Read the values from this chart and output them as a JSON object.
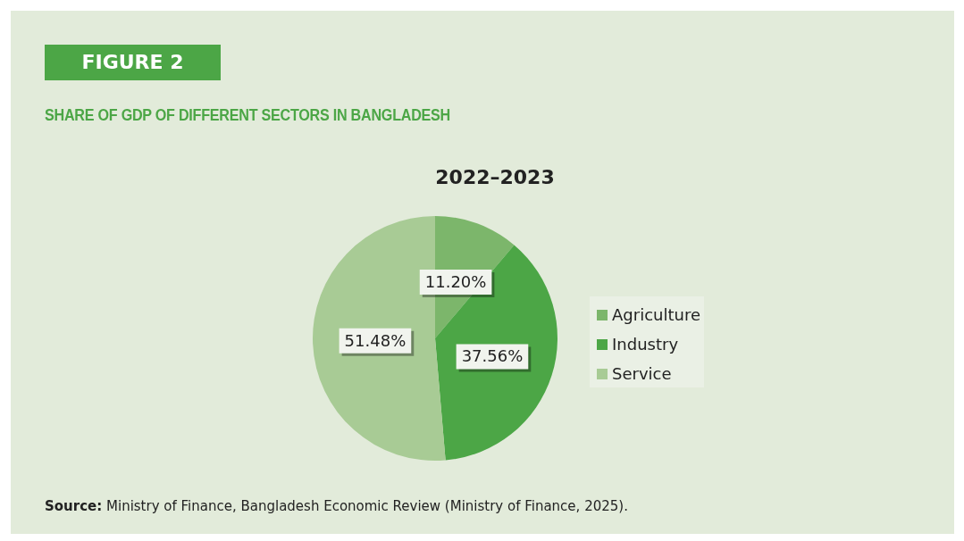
{
  "chart_data": {
    "type": "pie",
    "title": "SHARE OF GDP OF DIFFERENT SECTORS IN BANGLADESH",
    "subtitle": "2022–2023",
    "annotations": [
      "FIGURE 2",
      "Source: Ministry of Finance, Bangladesh Economic Review (Ministry of Finance, 2025)."
    ],
    "categories": [
      "Agriculture",
      "Industry",
      "Service"
    ],
    "values": [
      11.2,
      37.56,
      51.48
    ],
    "value_labels": [
      "11.20%",
      "37.56%",
      "51.48%"
    ],
    "colors": [
      "#7cb66b",
      "#4ca646",
      "#a8cb95"
    ],
    "legend": "right"
  }
}
